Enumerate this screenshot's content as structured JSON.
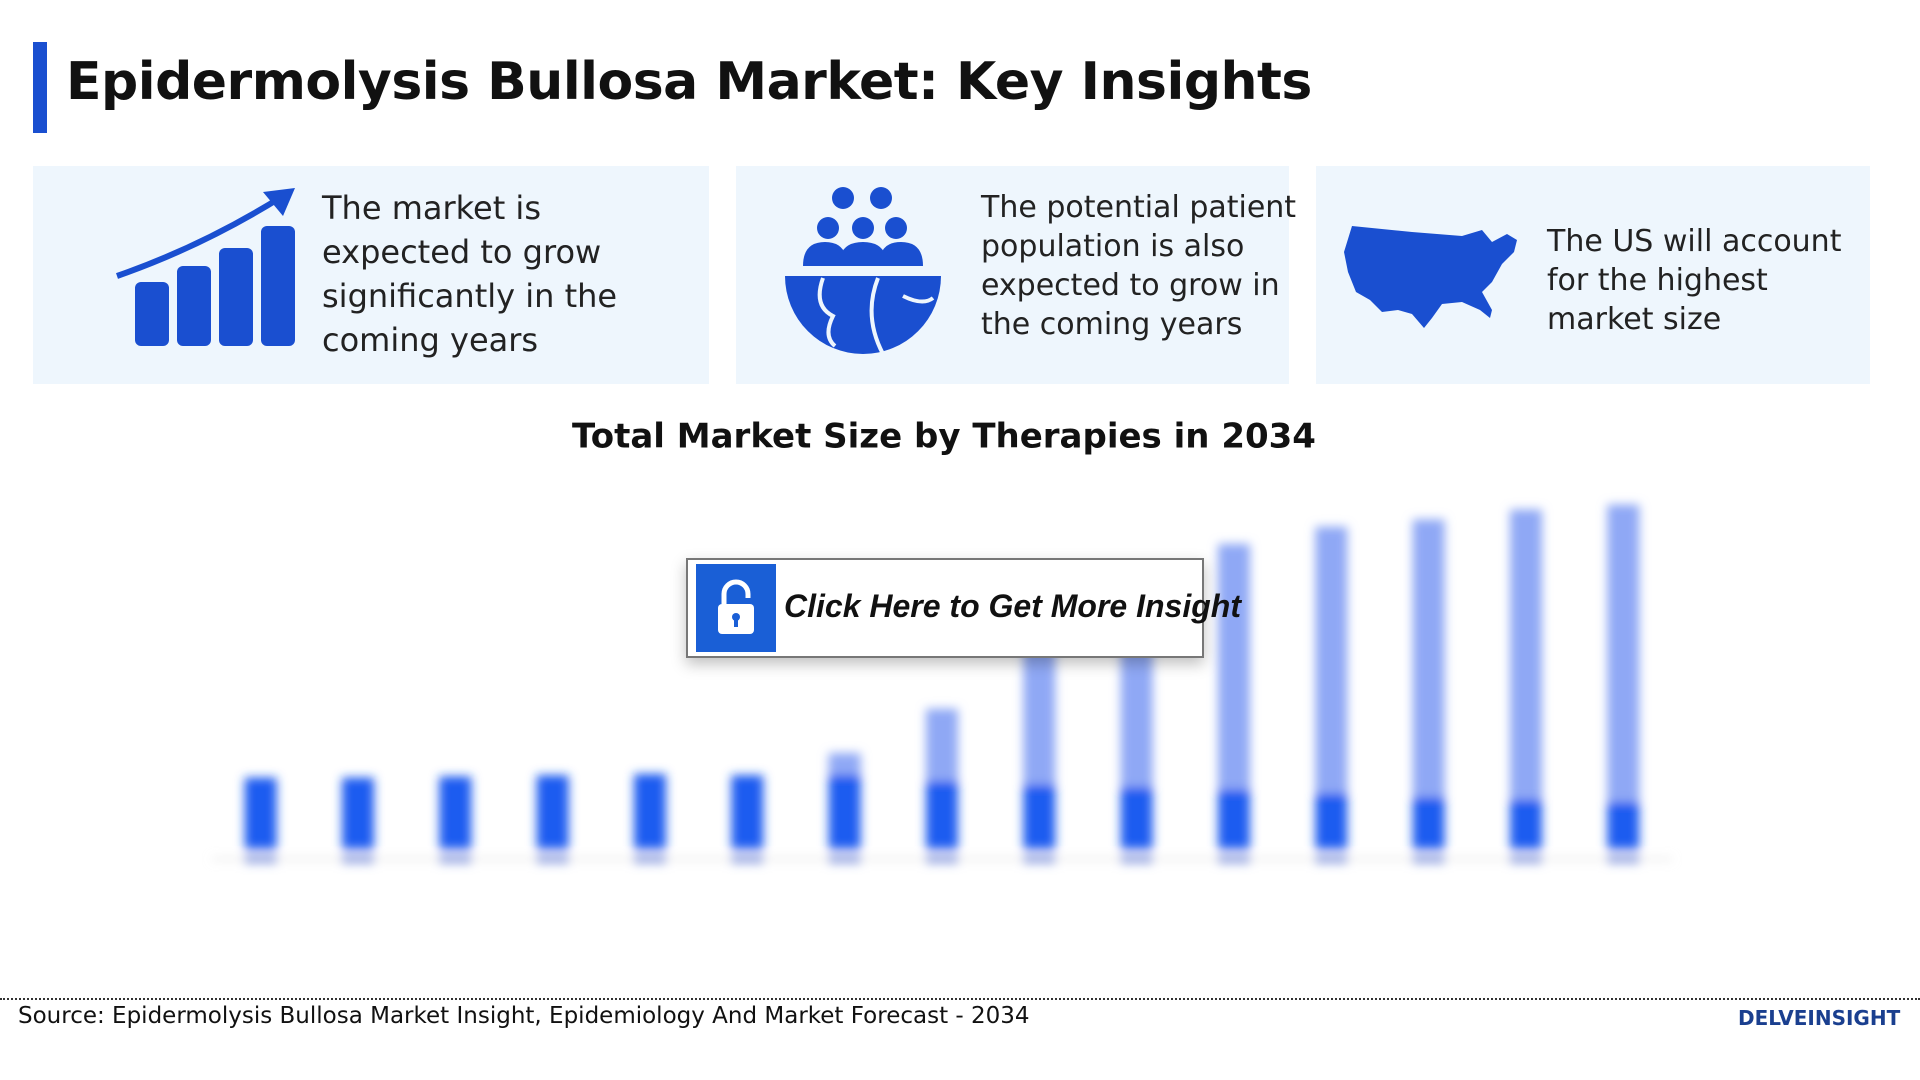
{
  "header": {
    "title": "Epidermolysis Bullosa Market: Key Insights"
  },
  "insights": [
    {
      "lines": [
        "The market is",
        "expected to grow",
        "significantly in the",
        "coming years"
      ]
    },
    {
      "lines": [
        "The potential patient",
        "population is also",
        "expected to grow in",
        "the coming years"
      ]
    },
    {
      "lines": [
        "The US will account",
        "for the highest",
        "market size"
      ]
    }
  ],
  "chart_data": {
    "type": "bar",
    "stacked": true,
    "title": "Total Market Size by Therapies in 2034",
    "categories": [
      null,
      null,
      null,
      null,
      null,
      null,
      null,
      null,
      null,
      null,
      null,
      null,
      null,
      null,
      null
    ],
    "series": [
      {
        "color": "#1a5cf0",
        "values": [
          58,
          58,
          59,
          60,
          61,
          60,
          60,
          55,
          52,
          50,
          48,
          45,
          42,
          40,
          38
        ]
      },
      {
        "color": "#8fa8f5",
        "values": [
          0,
          0,
          0,
          0,
          0,
          0,
          18,
          59,
          118,
          120,
          200,
          217,
          226,
          236,
          242
        ]
      }
    ],
    "ylim": [
      0,
      300
    ]
  },
  "cta": {
    "label": "Click Here to Get More Insight"
  },
  "footer": {
    "source": "Source: Epidermolysis Bullosa Market Insight, Epidemiology And Market Forecast - 2034",
    "logo": "DELVEINSIGHT"
  }
}
